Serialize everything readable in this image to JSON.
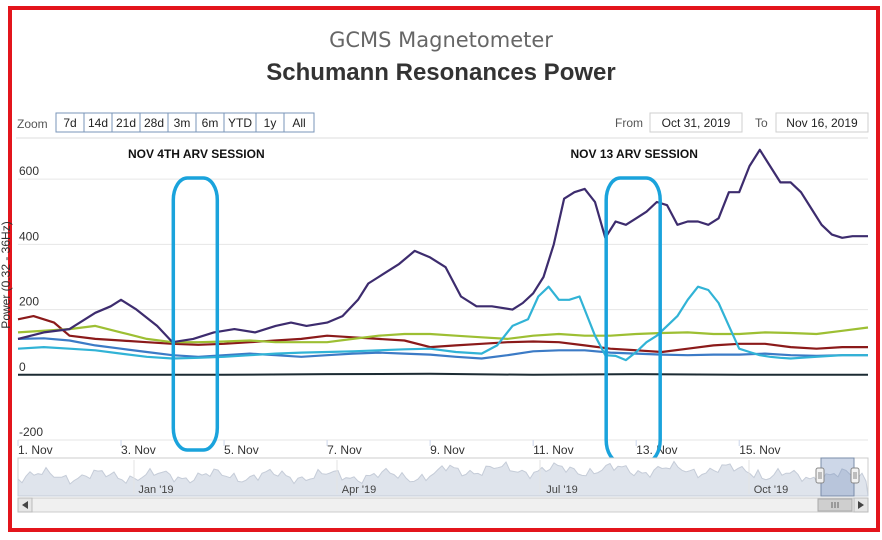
{
  "chart_data": {
    "type": "line",
    "title": "GCMS Magnetometer",
    "subtitle": "Schumann Resonances Power",
    "ylabel": "Power (0.32 - 36Hz)",
    "ylim": [
      -200,
      720
    ],
    "yticks": [
      "600",
      "400",
      "200",
      "0",
      "-200"
    ],
    "ytick_values": [
      600,
      400,
      200,
      0,
      -200
    ],
    "x_range_days": [
      0,
      16.5
    ],
    "xtick_labels": [
      "1. Nov",
      "3. Nov",
      "5. Nov",
      "7. Nov",
      "9. Nov",
      "11. Nov",
      "13. Nov",
      "15. Nov"
    ],
    "xtick_days": [
      0,
      2,
      4,
      6,
      8,
      10,
      12,
      14
    ],
    "zoom": {
      "label": "Zoom",
      "buttons": [
        "7d",
        "14d",
        "21d",
        "28d",
        "3m",
        "6m",
        "YTD",
        "1y",
        "All"
      ],
      "selected": "All"
    },
    "range_inputs": {
      "from_label": "From",
      "from_value": "Oct 31, 2019",
      "to_label": "To",
      "to_value": "Nov 16, 2019"
    },
    "annotations": [
      {
        "text": "NOV 4TH ARV SESSION",
        "day": 3.5
      },
      {
        "text": "NOV 13 ARV SESSION",
        "day": 12.0
      }
    ],
    "highlight_color": "#1aa3dc",
    "navigator_labels": [
      "Jan '19",
      "Apr '19",
      "Jul '19",
      "Oct '19"
    ],
    "series": [
      {
        "color": "#3d2c6e",
        "x": [
          0,
          0.5,
          1,
          1.5,
          1.8,
          2,
          2.3,
          2.7,
          3,
          3.4,
          3.8,
          4.2,
          4.6,
          5,
          5.3,
          5.6,
          6,
          6.3,
          6.6,
          6.8,
          7,
          7.4,
          7.7,
          8,
          8.3,
          8.6,
          8.9,
          9.2,
          9.6,
          9.8,
          10,
          10.2,
          10.4,
          10.6,
          10.8,
          11,
          11.2,
          11.4,
          11.6,
          11.8,
          12,
          12.2,
          12.4,
          12.6,
          12.8,
          13,
          13.2,
          13.4,
          13.6,
          13.8,
          14,
          14.2,
          14.4,
          14.6,
          14.8,
          15,
          15.2,
          15.4,
          15.6,
          15.8,
          16,
          16.2,
          16.5
        ],
        "y": [
          110,
          130,
          140,
          190,
          210,
          230,
          200,
          150,
          100,
          110,
          130,
          140,
          130,
          150,
          160,
          150,
          160,
          180,
          230,
          280,
          300,
          340,
          380,
          360,
          330,
          240,
          210,
          210,
          200,
          220,
          250,
          300,
          400,
          540,
          560,
          570,
          530,
          420,
          470,
          460,
          480,
          500,
          530,
          520,
          460,
          470,
          470,
          460,
          480,
          560,
          560,
          640,
          690,
          640,
          590,
          590,
          560,
          510,
          460,
          430,
          420,
          425,
          425
        ]
      },
      {
        "color": "#31b3d6",
        "x": [
          0,
          0.5,
          1,
          1.5,
          2,
          2.5,
          3,
          3.5,
          4,
          4.5,
          5,
          5.5,
          6,
          6.5,
          7,
          7.5,
          8,
          8.5,
          9,
          9.3,
          9.6,
          9.9,
          10.1,
          10.3,
          10.5,
          10.7,
          10.9,
          11,
          11.2,
          11.4,
          11.6,
          11.8,
          12,
          12.2,
          12.4,
          12.6,
          12.8,
          13,
          13.2,
          13.4,
          13.6,
          13.8,
          14,
          14.2,
          14.4,
          14.6,
          14.8,
          15,
          15.2,
          15.5,
          16,
          16.5
        ],
        "y": [
          80,
          85,
          80,
          75,
          65,
          55,
          50,
          52,
          55,
          60,
          65,
          68,
          70,
          72,
          75,
          78,
          80,
          70,
          65,
          90,
          150,
          170,
          240,
          270,
          230,
          230,
          240,
          200,
          120,
          60,
          58,
          45,
          70,
          100,
          120,
          150,
          180,
          230,
          270,
          260,
          220,
          150,
          80,
          70,
          60,
          55,
          52,
          50,
          52,
          55,
          60,
          60
        ]
      },
      {
        "color": "#9dbf33",
        "x": [
          0,
          1,
          1.5,
          2,
          2.5,
          3,
          3.5,
          4,
          4.5,
          5,
          6,
          6.5,
          7,
          7.5,
          8,
          8.5,
          9,
          9.5,
          10,
          10.5,
          11,
          11.5,
          12,
          12.5,
          13,
          13.5,
          14,
          14.5,
          15,
          15.5,
          16,
          16.5
        ],
        "y": [
          130,
          140,
          150,
          130,
          110,
          100,
          100,
          102,
          105,
          100,
          100,
          110,
          120,
          125,
          125,
          120,
          115,
          110,
          120,
          125,
          120,
          120,
          125,
          128,
          130,
          125,
          125,
          130,
          128,
          125,
          135,
          145
        ]
      },
      {
        "color": "#8b1a1a",
        "x": [
          0,
          0.3,
          0.7,
          1,
          1.5,
          2,
          2.5,
          3,
          3.5,
          4,
          4.5,
          5,
          5.5,
          6,
          6.5,
          7,
          7.5,
          8,
          8.5,
          9,
          9.5,
          10,
          10.5,
          11,
          11.5,
          12,
          12.5,
          13,
          13.5,
          14,
          14.5,
          15,
          15.5,
          16,
          16.5
        ],
        "y": [
          170,
          180,
          160,
          120,
          110,
          105,
          100,
          95,
          92,
          95,
          100,
          105,
          110,
          120,
          115,
          110,
          105,
          85,
          90,
          95,
          100,
          102,
          100,
          90,
          80,
          75,
          70,
          80,
          90,
          95,
          95,
          85,
          80,
          85,
          85
        ]
      },
      {
        "color": "#3c7bc6",
        "x": [
          0,
          0.5,
          1,
          1.5,
          2,
          2.5,
          3,
          3.5,
          4,
          4.5,
          5,
          5.5,
          6,
          6.5,
          7,
          7.5,
          8,
          8.5,
          9,
          9.5,
          10,
          10.5,
          11,
          11.5,
          12,
          12.5,
          13,
          13.5,
          14,
          14.5,
          15,
          15.5,
          16,
          16.5
        ],
        "y": [
          110,
          112,
          105,
          90,
          80,
          70,
          60,
          55,
          60,
          65,
          60,
          55,
          60,
          65,
          68,
          65,
          62,
          55,
          50,
          60,
          72,
          75,
          75,
          68,
          65,
          62,
          60,
          62,
          62,
          65,
          60,
          58,
          60,
          60
        ]
      },
      {
        "color": "#1c2b33",
        "x": [
          0,
          2,
          4,
          6,
          8,
          10,
          12,
          14,
          16,
          16.5
        ],
        "y": [
          0,
          0,
          0,
          2,
          3,
          0,
          2,
          0,
          0,
          0
        ]
      }
    ]
  }
}
